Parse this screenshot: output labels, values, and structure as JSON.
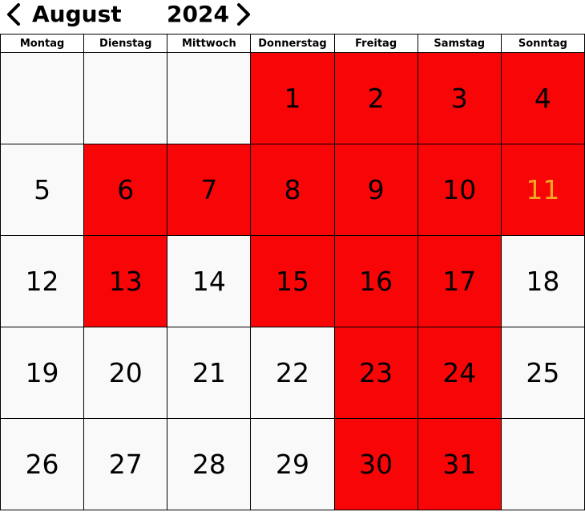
{
  "calendar": {
    "month": "August",
    "year": "2024",
    "weekdays": [
      "Montag",
      "Dienstag",
      "Mittwoch",
      "Donnerstag",
      "Freitag",
      "Samstag",
      "Sonntag"
    ],
    "weeks": [
      [
        null,
        null,
        null,
        1,
        2,
        3,
        4
      ],
      [
        5,
        6,
        7,
        8,
        9,
        10,
        11
      ],
      [
        12,
        13,
        14,
        15,
        16,
        17,
        18
      ],
      [
        19,
        20,
        21,
        22,
        23,
        24,
        25
      ],
      [
        26,
        27,
        28,
        29,
        30,
        31,
        null
      ]
    ],
    "marked_days": [
      1,
      2,
      3,
      4,
      6,
      7,
      8,
      9,
      10,
      11,
      13,
      15,
      16,
      17,
      23,
      24,
      30,
      31
    ],
    "highlighted_day": 11
  },
  "colors": {
    "marked": "#f80508",
    "highlighted_text": "#f5a623",
    "default_cell": "#f9f9f9"
  },
  "icons": {
    "prev": "chevron-left-icon",
    "next": "chevron-right-icon"
  }
}
